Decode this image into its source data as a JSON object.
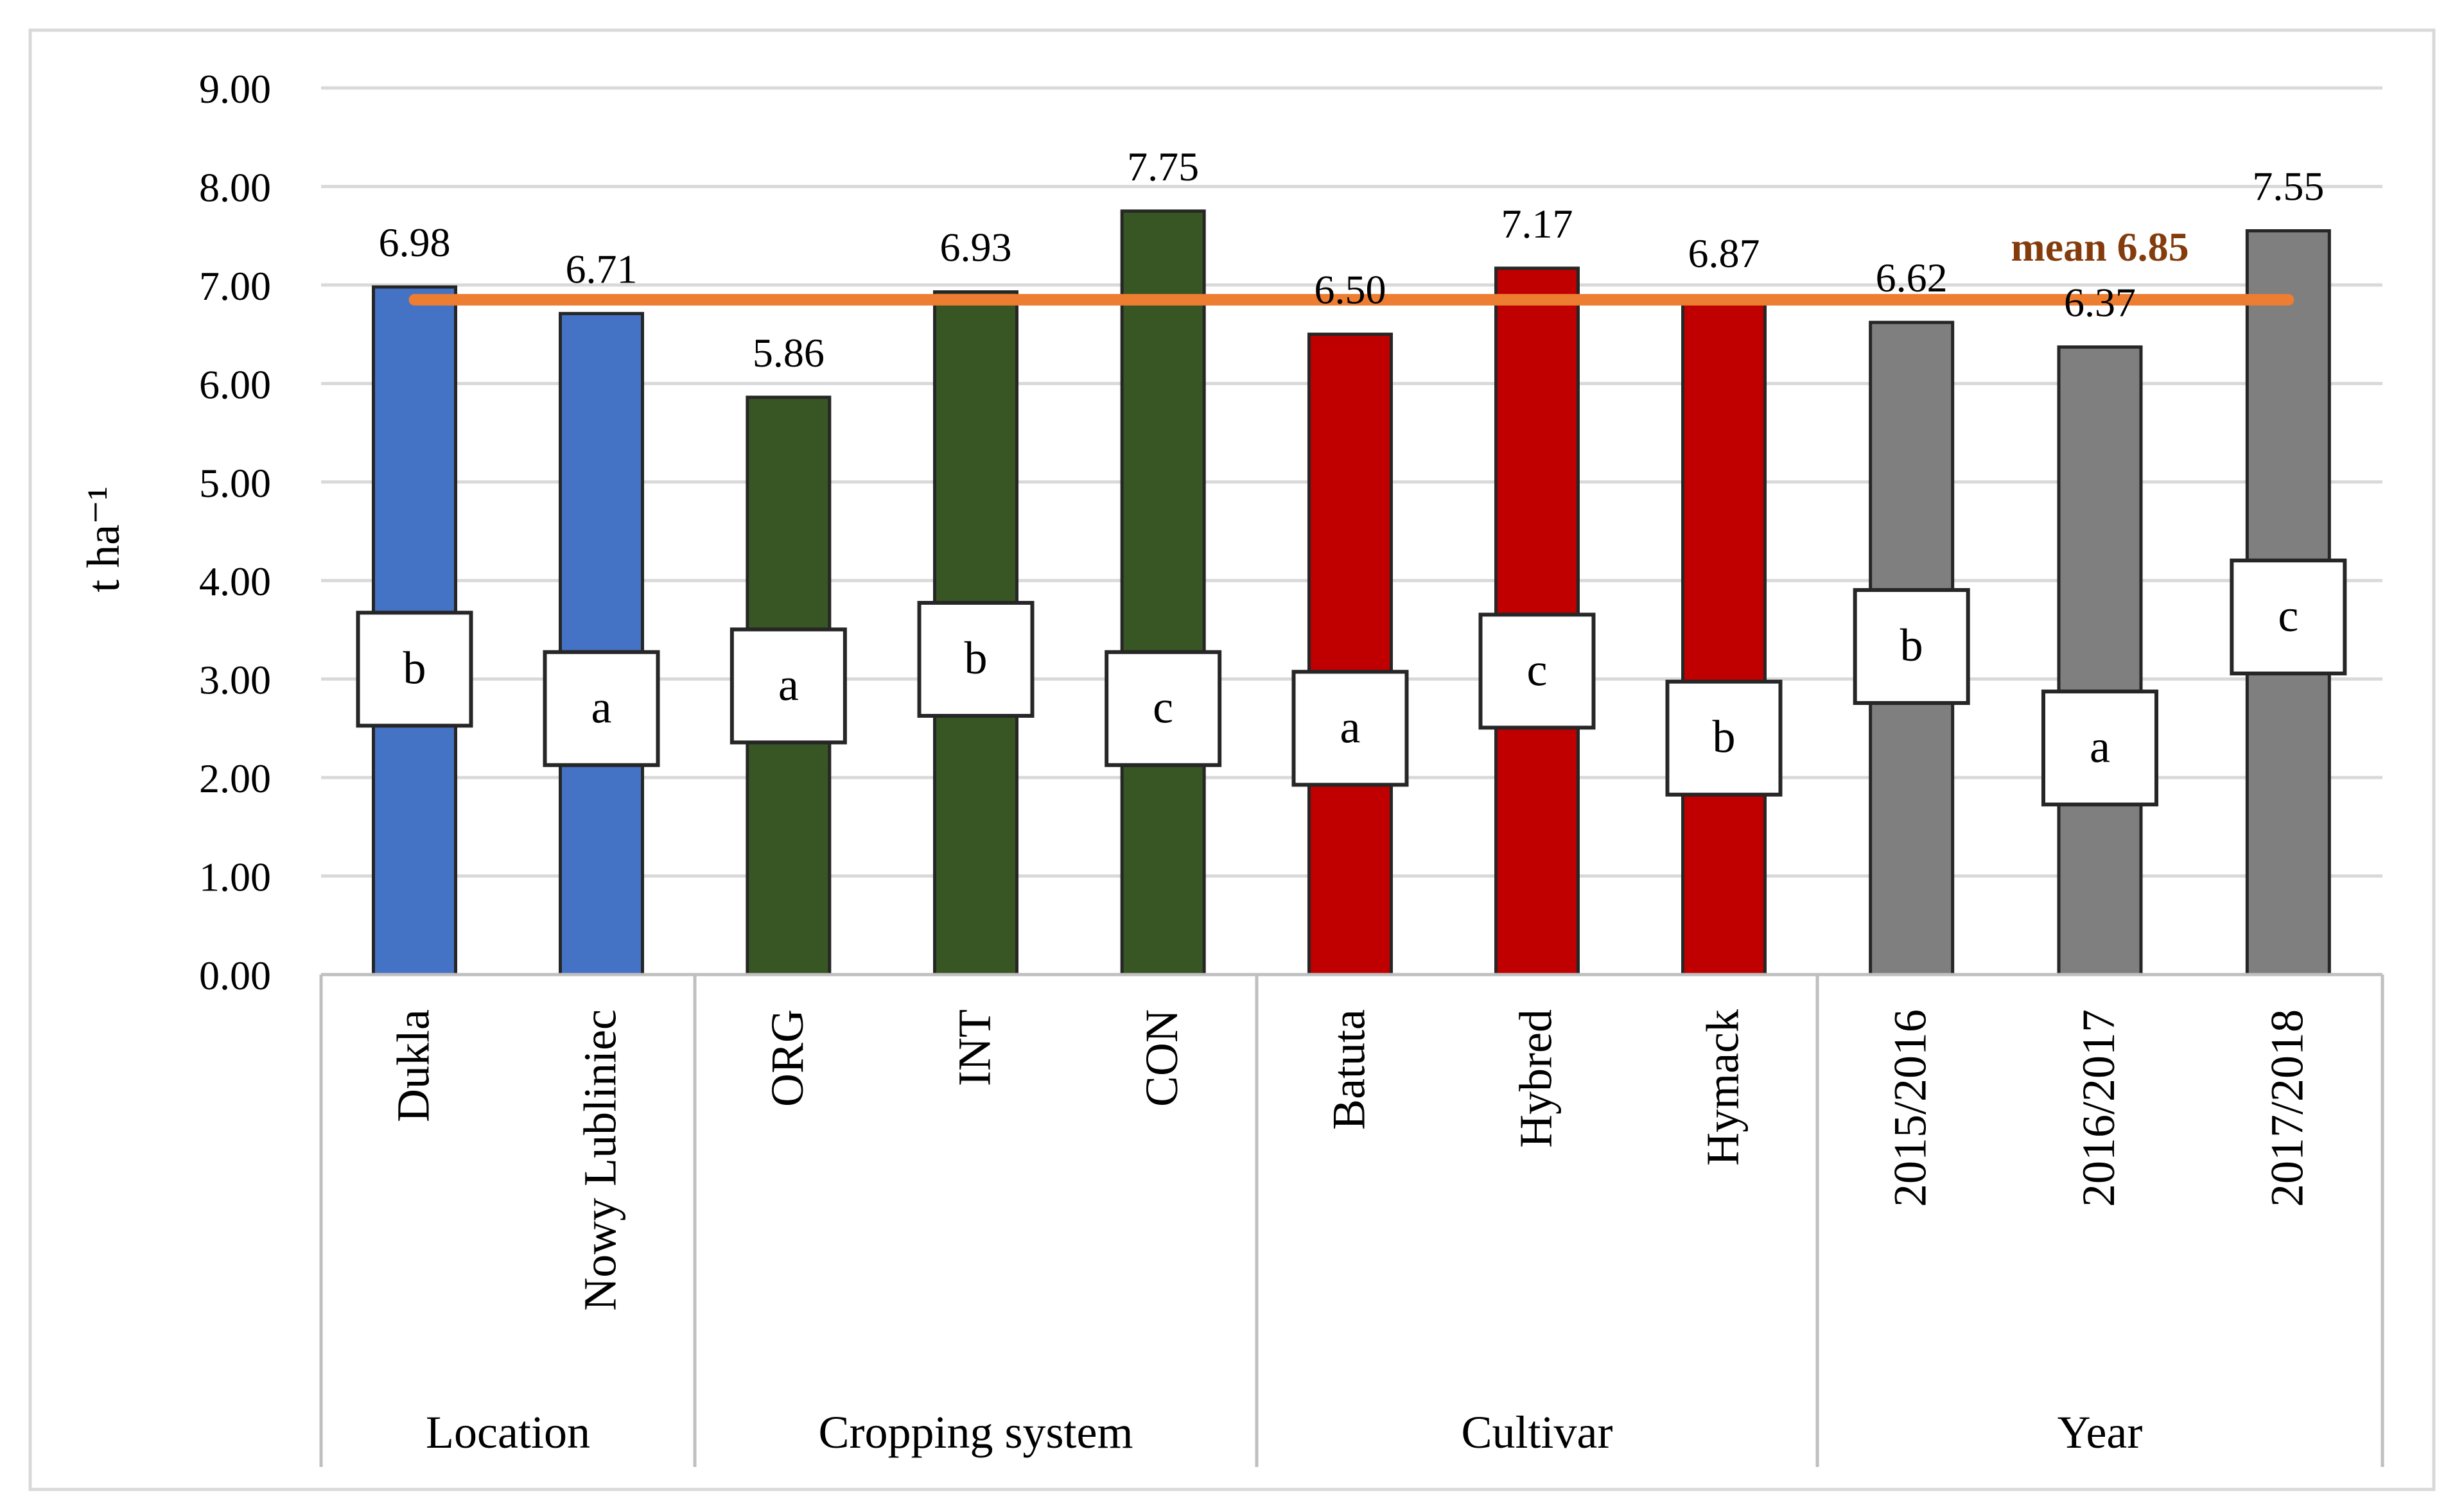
{
  "chart_data": {
    "type": "bar",
    "ylabel": "t ha⁻¹",
    "ylim": [
      0,
      9
    ],
    "yticks": [
      "0.00",
      "1.00",
      "2.00",
      "3.00",
      "4.00",
      "5.00",
      "6.00",
      "7.00",
      "8.00",
      "9.00"
    ],
    "grid": true,
    "groups": [
      {
        "name": "Location",
        "color": "#4472C4",
        "items": [
          {
            "label": "Dukla",
            "value": 6.98,
            "value_label": "6.98",
            "letter": "b"
          },
          {
            "label": "Nowy Lubliniec",
            "value": 6.71,
            "value_label": "6.71",
            "letter": "a"
          }
        ]
      },
      {
        "name": "Cropping system",
        "color": "#375623",
        "items": [
          {
            "label": "ORG",
            "value": 5.86,
            "value_label": "5.86",
            "letter": "a"
          },
          {
            "label": "INT",
            "value": 6.93,
            "value_label": "6.93",
            "letter": "b"
          },
          {
            "label": "CON",
            "value": 7.75,
            "value_label": "7.75",
            "letter": "c"
          }
        ]
      },
      {
        "name": "Cultivar",
        "color": "#C00000",
        "items": [
          {
            "label": "Batuta",
            "value": 6.5,
            "value_label": "6.50",
            "letter": "a"
          },
          {
            "label": "Hybred",
            "value": 7.17,
            "value_label": "7.17",
            "letter": "c"
          },
          {
            "label": "Hymack",
            "value": 6.87,
            "value_label": "6.87",
            "letter": "b"
          }
        ]
      },
      {
        "name": "Year",
        "color": "#7F7F7F",
        "items": [
          {
            "label": "2015/2016",
            "value": 6.62,
            "value_label": "6.62",
            "letter": "b"
          },
          {
            "label": "2016/2017",
            "value": 6.37,
            "value_label": "6.37",
            "letter": "a"
          },
          {
            "label": "2017/2018",
            "value": 7.55,
            "value_label": "7.55",
            "letter": "c"
          }
        ]
      }
    ],
    "mean": {
      "value": 6.85,
      "label": "mean 6.85",
      "color": "#ED7D31",
      "label_color": "#843C0C"
    },
    "letter_box_centers": [
      3.1,
      2.7,
      2.93,
      3.2,
      2.7,
      2.5,
      3.08,
      2.4,
      3.33,
      2.3,
      3.63
    ]
  }
}
